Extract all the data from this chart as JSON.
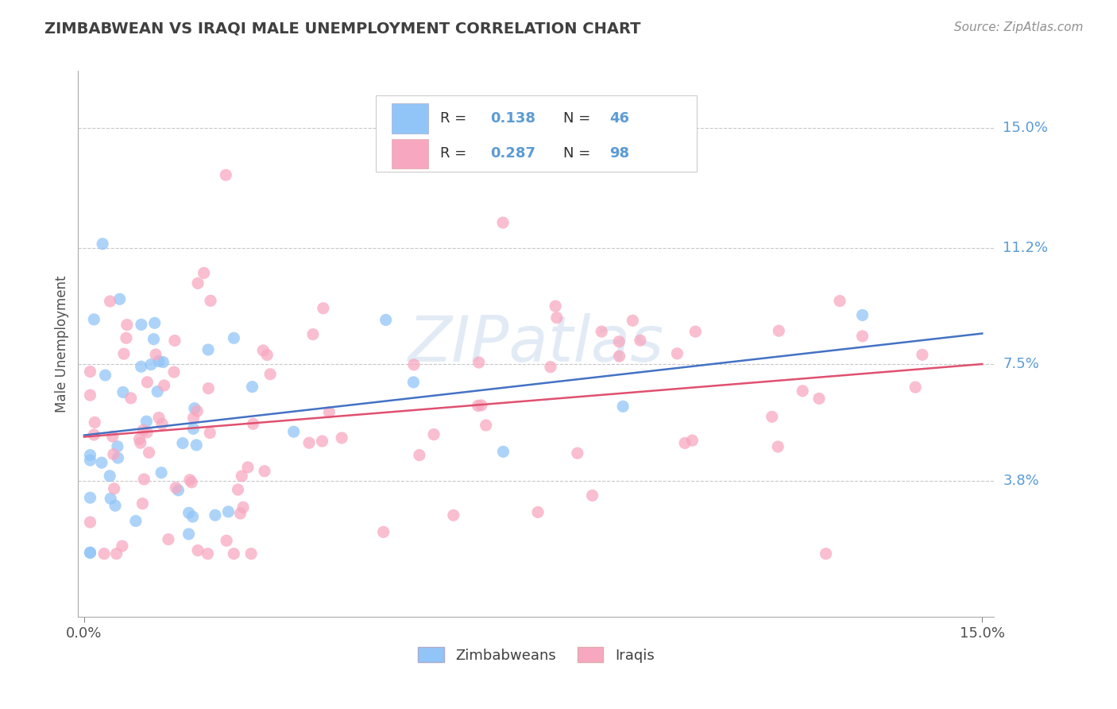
{
  "title": "ZIMBABWEAN VS IRAQI MALE UNEMPLOYMENT CORRELATION CHART",
  "source": "Source: ZipAtlas.com",
  "ylabel": "Male Unemployment",
  "y_tick_values": [
    0.038,
    0.075,
    0.112,
    0.15
  ],
  "y_tick_labels": [
    "3.8%",
    "7.5%",
    "11.2%",
    "15.0%"
  ],
  "zimbabwean_R": 0.138,
  "zimbabwean_N": 46,
  "iraqi_R": 0.287,
  "iraqi_N": 98,
  "zimbabwean_color": "#92c5f7",
  "iraqi_color": "#f7a8c0",
  "zimbabwean_line_color": "#4472c4",
  "iraqi_line_color": "#e05070",
  "watermark": "ZIPatlas",
  "background_color": "#ffffff",
  "grid_color": "#c8c8c8",
  "right_label_color": "#5b9bd5",
  "title_color": "#404040",
  "ylim_min": -0.005,
  "ylim_max": 0.168,
  "xlim_min": -0.001,
  "xlim_max": 0.152
}
